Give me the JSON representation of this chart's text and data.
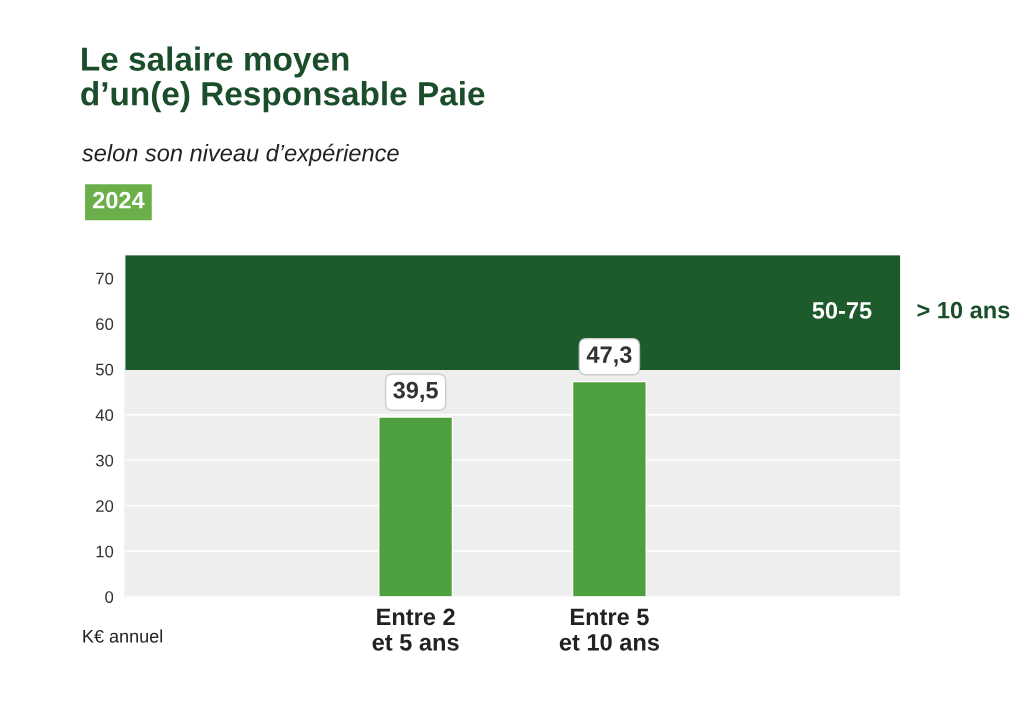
{
  "chart_data": {
    "type": "bar",
    "title": "Le salaire moyen\nd’un(e) Responsable Paie",
    "subtitle": "selon son niveau d’expérience",
    "ylabel": "K€ annuel",
    "categories": [
      null,
      "Entre 2\net 5 ans",
      "Entre 5\net 10 ans",
      null
    ],
    "values": [
      null,
      39.5,
      47.3,
      null
    ],
    "value_labels": [
      null,
      "39,5",
      "47,3",
      null
    ],
    "color": "#4e9f3d",
    "ylim": [
      0,
      75
    ],
    "yticks": [
      0,
      10,
      20,
      30,
      40,
      50,
      60,
      70
    ],
    "grid": "y",
    "bands": [
      {
        "axis": "y",
        "from": 50,
        "to": 75,
        "label": "50-75",
        "color": "#1d5a2c"
      }
    ],
    "annotations": [
      "2024",
      "> 10 ans"
    ]
  }
}
